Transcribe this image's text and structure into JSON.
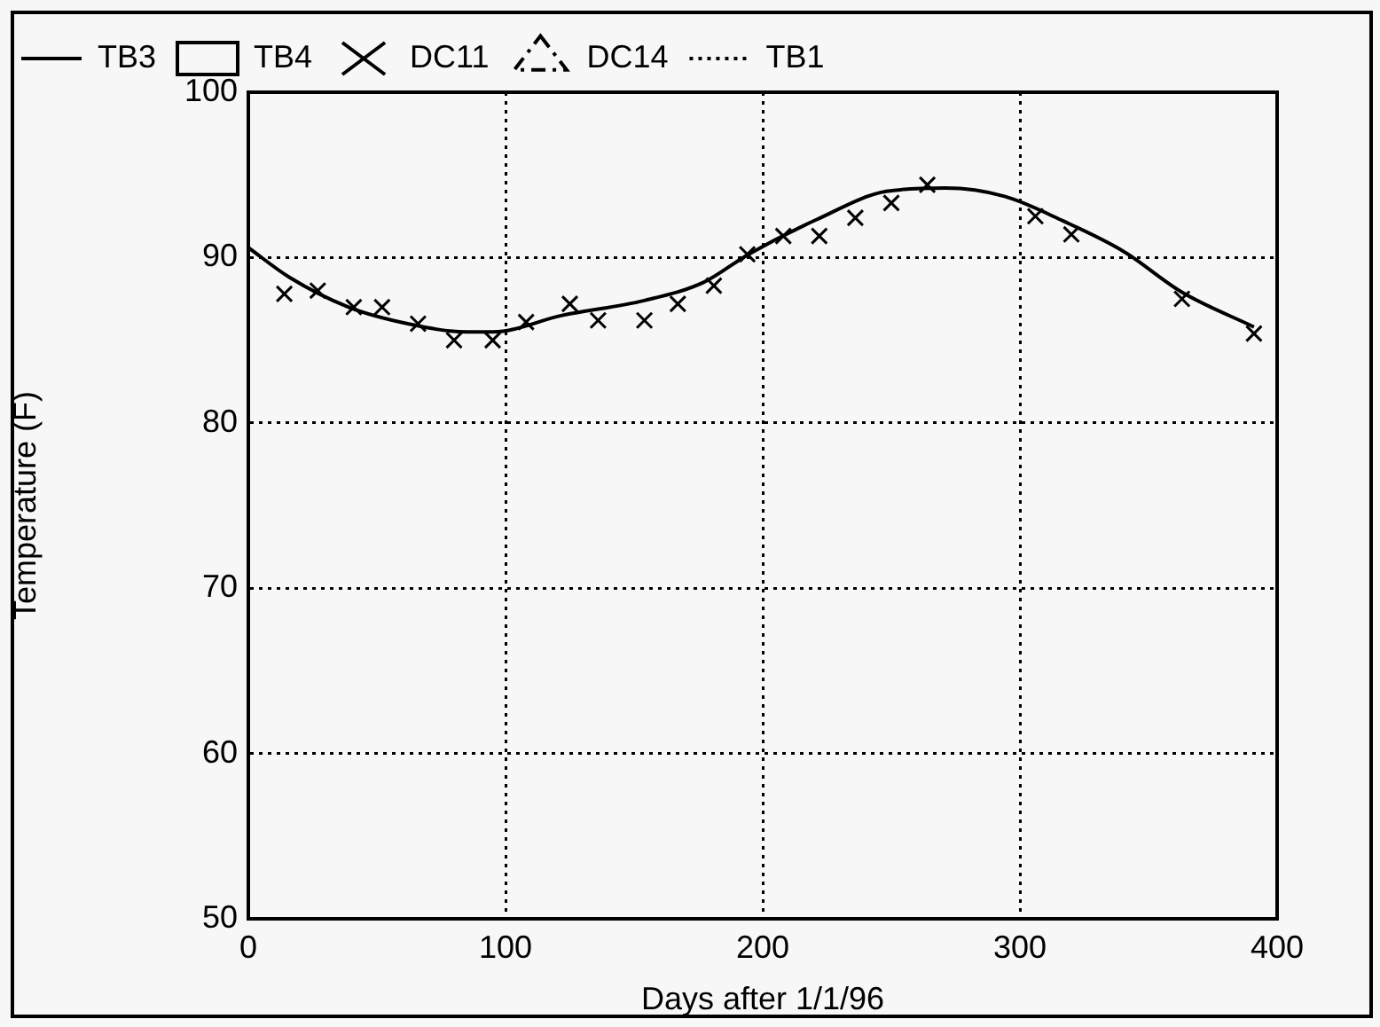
{
  "chart_data": {
    "type": "line",
    "xlabel": "Days after 1/1/96",
    "ylabel": "Temperature (F)",
    "xlim": [
      0,
      400
    ],
    "xticks": [
      0,
      100,
      200,
      300,
      400
    ],
    "ylim": [
      50,
      100
    ],
    "yticks": [
      50,
      60,
      70,
      80,
      90,
      100
    ],
    "grid": true,
    "legend": "top left",
    "series": [
      {
        "name": "TB3",
        "color": "#000000",
        "line_style": "solid",
        "marker": "none",
        "x": [
          0,
          16,
          39,
          62,
          85,
          95,
          122,
          154,
          177,
          194.5,
          221,
          248,
          271,
          294,
          317,
          340,
          363,
          391
        ],
        "values": [
          90.6,
          88.8,
          87.0,
          86.0,
          85.5,
          85.5,
          86.5,
          87.4,
          88.5,
          90.2,
          92.3,
          94.0,
          94.2,
          93.7,
          92.2,
          90.4,
          87.9,
          85.8
        ]
      },
      {
        "name": "TB4",
        "type": "scatter",
        "color": "#000000",
        "marker": "square"
      },
      {
        "name": "DC11",
        "type": "scatter",
        "color": "#000000",
        "marker": "cross",
        "x": [
          14,
          27,
          41,
          52,
          66,
          80,
          95,
          108,
          125,
          136,
          154,
          167,
          181,
          194,
          208,
          222,
          236,
          250,
          264,
          306,
          320,
          363,
          391
        ],
        "values": [
          87.8,
          88.0,
          87.0,
          87.0,
          86.0,
          85.0,
          85.0,
          86.1,
          87.2,
          86.2,
          86.2,
          87.2,
          88.3,
          90.2,
          91.3,
          91.3,
          92.4,
          93.3,
          94.4,
          92.5,
          91.4,
          87.5,
          85.4
        ]
      },
      {
        "name": "DC14",
        "color": "#000000",
        "line_style": "dashed",
        "marker": "triangle"
      },
      {
        "name": "TB1",
        "color": "#000000",
        "line_style": "dotted",
        "marker": "none"
      }
    ]
  }
}
